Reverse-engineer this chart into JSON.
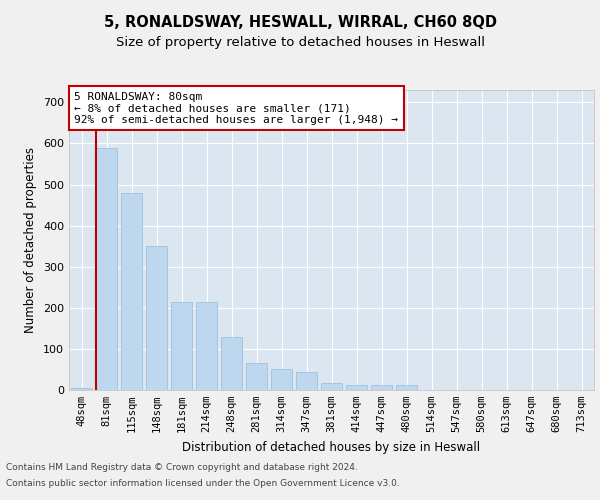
{
  "title": "5, RONALDSWAY, HESWALL, WIRRAL, CH60 8QD",
  "subtitle": "Size of property relative to detached houses in Heswall",
  "xlabel": "Distribution of detached houses by size in Heswall",
  "ylabel": "Number of detached properties",
  "categories": [
    "48sqm",
    "81sqm",
    "115sqm",
    "148sqm",
    "181sqm",
    "214sqm",
    "248sqm",
    "281sqm",
    "314sqm",
    "347sqm",
    "381sqm",
    "414sqm",
    "447sqm",
    "480sqm",
    "514sqm",
    "547sqm",
    "580sqm",
    "613sqm",
    "647sqm",
    "680sqm",
    "713sqm"
  ],
  "values": [
    5,
    590,
    480,
    350,
    215,
    215,
    130,
    65,
    50,
    45,
    18,
    13,
    13,
    13,
    0,
    0,
    0,
    0,
    0,
    0,
    0
  ],
  "bar_color": "#bdd7ee",
  "bar_edge_color": "#9bbbd4",
  "highlight_bar_edge_color": "#c00000",
  "annotation_text": "5 RONALDSWAY: 80sqm\n← 8% of detached houses are smaller (171)\n92% of semi-detached houses are larger (1,948) →",
  "annotation_box_color": "#ffffff",
  "annotation_box_edge_color": "#c00000",
  "ylim": [
    0,
    730
  ],
  "yticks": [
    0,
    100,
    200,
    300,
    400,
    500,
    600,
    700
  ],
  "fig_background": "#f0f0f0",
  "plot_background": "#dce6f1",
  "grid_color": "#ffffff",
  "footer_line1": "Contains HM Land Registry data © Crown copyright and database right 2024.",
  "footer_line2": "Contains public sector information licensed under the Open Government Licence v3.0."
}
